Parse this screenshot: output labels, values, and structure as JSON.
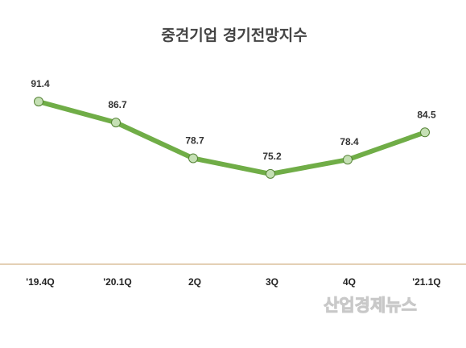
{
  "chart_data": {
    "type": "line",
    "title": "중견기업 경기전망지수",
    "categories": [
      "'19.4Q",
      "'20.1Q",
      "2Q",
      "3Q",
      "4Q",
      "'21.1Q"
    ],
    "series": [
      {
        "values": [
          91.4,
          86.7,
          78.7,
          75.2,
          78.4,
          84.5
        ]
      }
    ],
    "value_labels": [
      "91.4",
      "86.7",
      "78.7",
      "75.2",
      "78.4",
      "84.5"
    ],
    "ylim": [
      55,
      97
    ],
    "grid": false,
    "legend": "none",
    "colors": {
      "line": "#70ad47",
      "marker_fill": "#c5e0b4",
      "marker_stroke": "#548235",
      "axis": "#c9a26b"
    }
  },
  "watermark": "산업경제뉴스"
}
